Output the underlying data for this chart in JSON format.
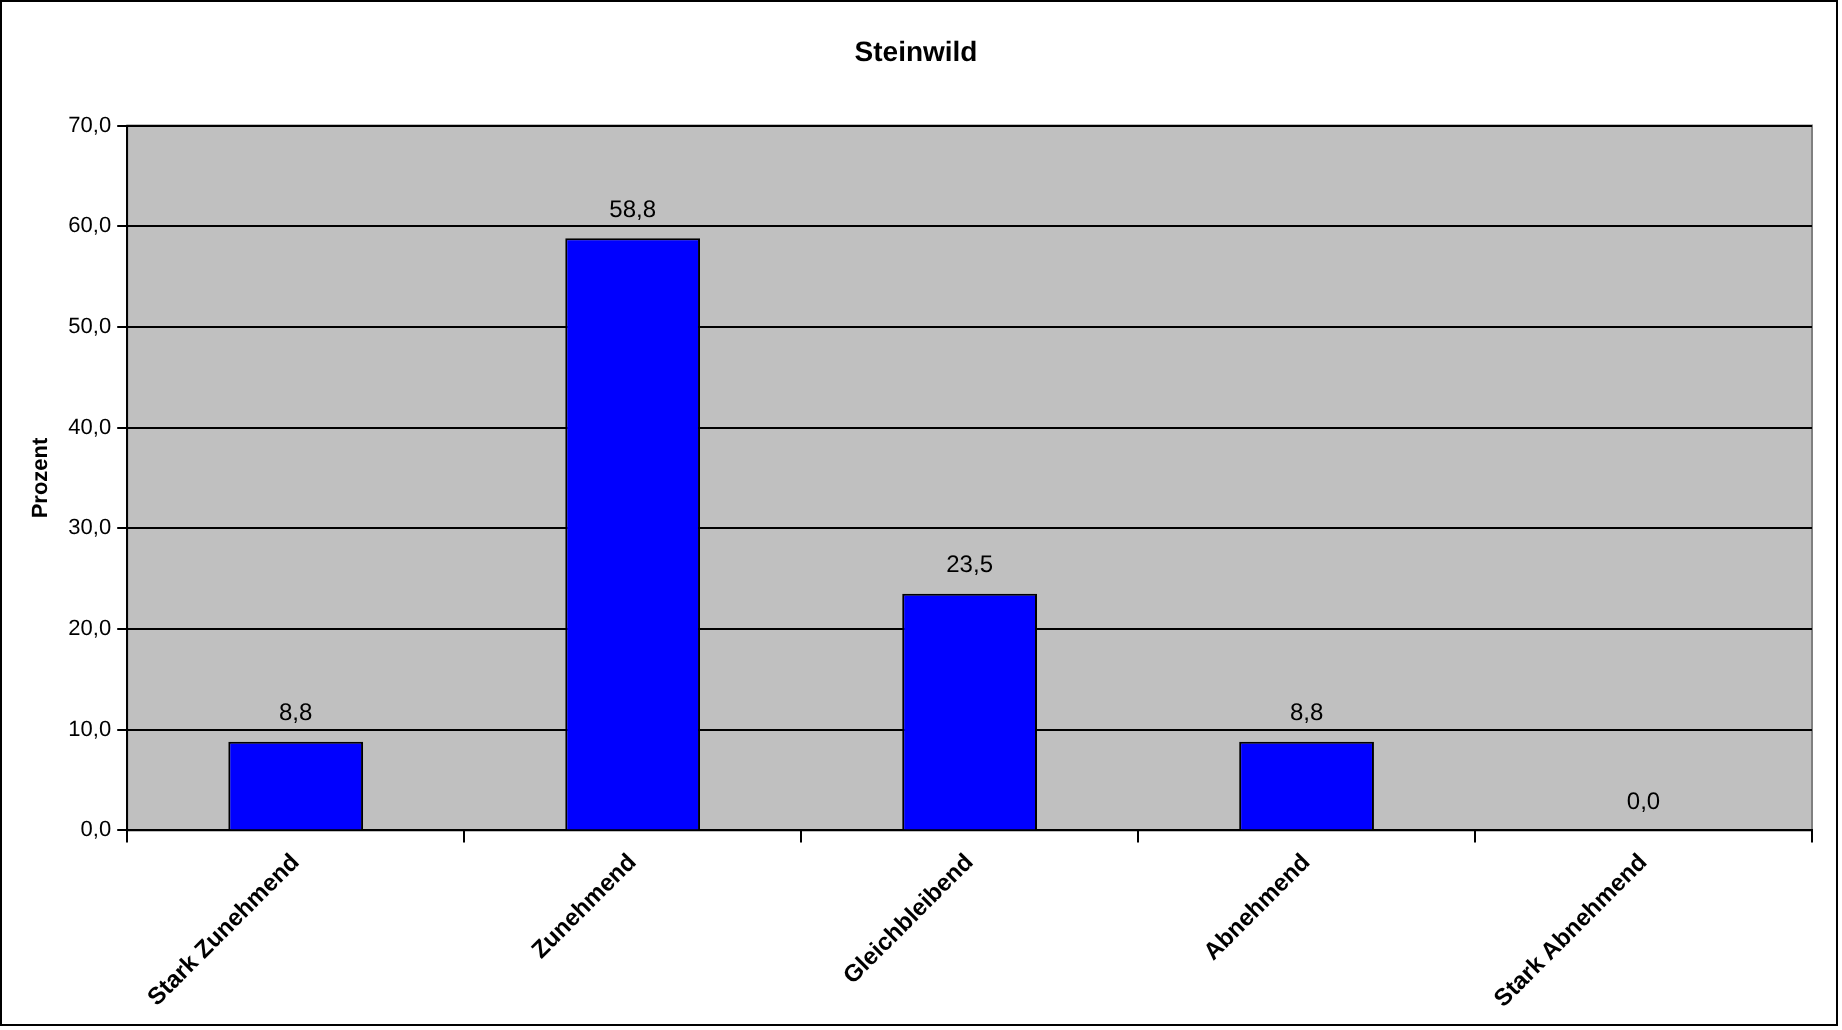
{
  "chart_data": {
    "type": "bar",
    "title": "Steinwild",
    "ylabel": "Prozent",
    "categories": [
      "Stark Zunehmend",
      "Zunehmend",
      "Gleichbleibend",
      "Abnehmend",
      "Stark Abnehmend"
    ],
    "values": [
      8.8,
      58.8,
      23.5,
      8.8,
      0.0
    ],
    "value_labels": [
      "8,8",
      "58,8",
      "23,5",
      "8,8",
      "0,0"
    ],
    "color": "#0000ff",
    "ylim": [
      0,
      70
    ],
    "yticks": [
      {
        "value": 0,
        "label": "0,0"
      },
      {
        "value": 10,
        "label": "10,0"
      },
      {
        "value": 20,
        "label": "20,0"
      },
      {
        "value": 30,
        "label": "30,0"
      },
      {
        "value": 40,
        "label": "40,0"
      },
      {
        "value": 50,
        "label": "50,0"
      },
      {
        "value": 60,
        "label": "60,0"
      },
      {
        "value": 70,
        "label": "70,0"
      }
    ],
    "grid": "y",
    "legend": false
  }
}
